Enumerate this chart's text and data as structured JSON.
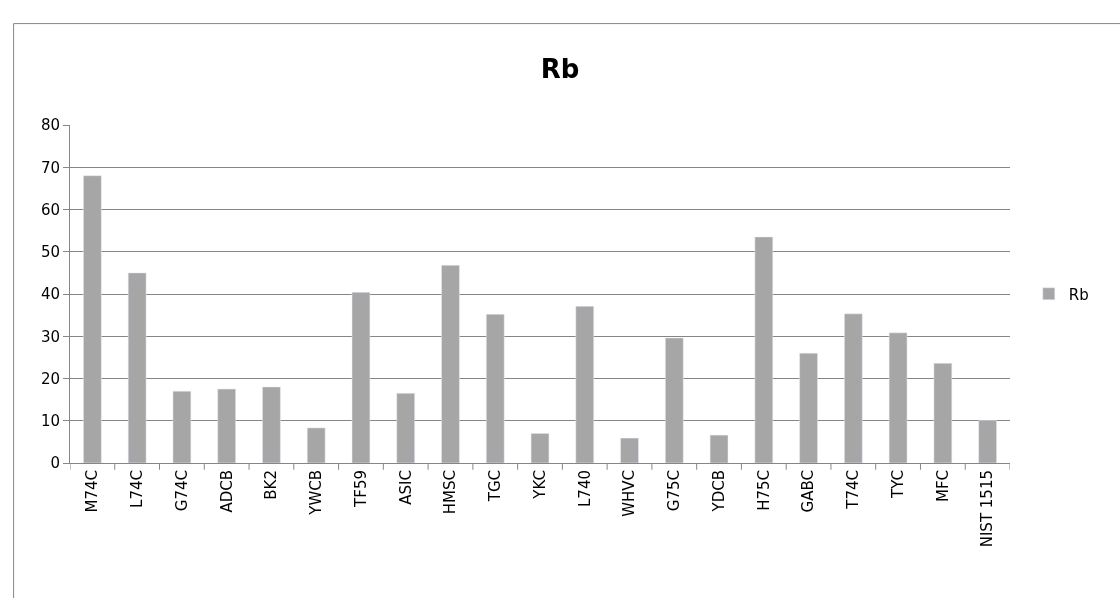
{
  "chart_data": {
    "type": "bar",
    "title": "Rb",
    "categories": [
      "M74C",
      "L74C",
      "G74C",
      "ADCB",
      "BK2",
      "YWCB",
      "TF59",
      "ASIC",
      "HMSC",
      "TGC",
      "YKC",
      "L740",
      "WHVC",
      "G75C",
      "YDCB",
      "H75C",
      "GABC",
      "T74C",
      "TYC",
      "MFC",
      "NIST 1515"
    ],
    "series": [
      {
        "name": "Rb",
        "color": "#a6a6a6",
        "values": [
          68,
          45,
          17,
          17.5,
          18,
          8.3,
          40.4,
          16.5,
          46.8,
          35.2,
          7,
          37.1,
          5.9,
          29.6,
          6.6,
          53.5,
          26,
          35.3,
          30.8,
          23.6,
          10.1
        ]
      }
    ],
    "ylim": [
      0,
      80
    ],
    "yticks": [
      0,
      10,
      20,
      30,
      40,
      50,
      60,
      70,
      80
    ],
    "grid": "y",
    "legend": "right"
  }
}
